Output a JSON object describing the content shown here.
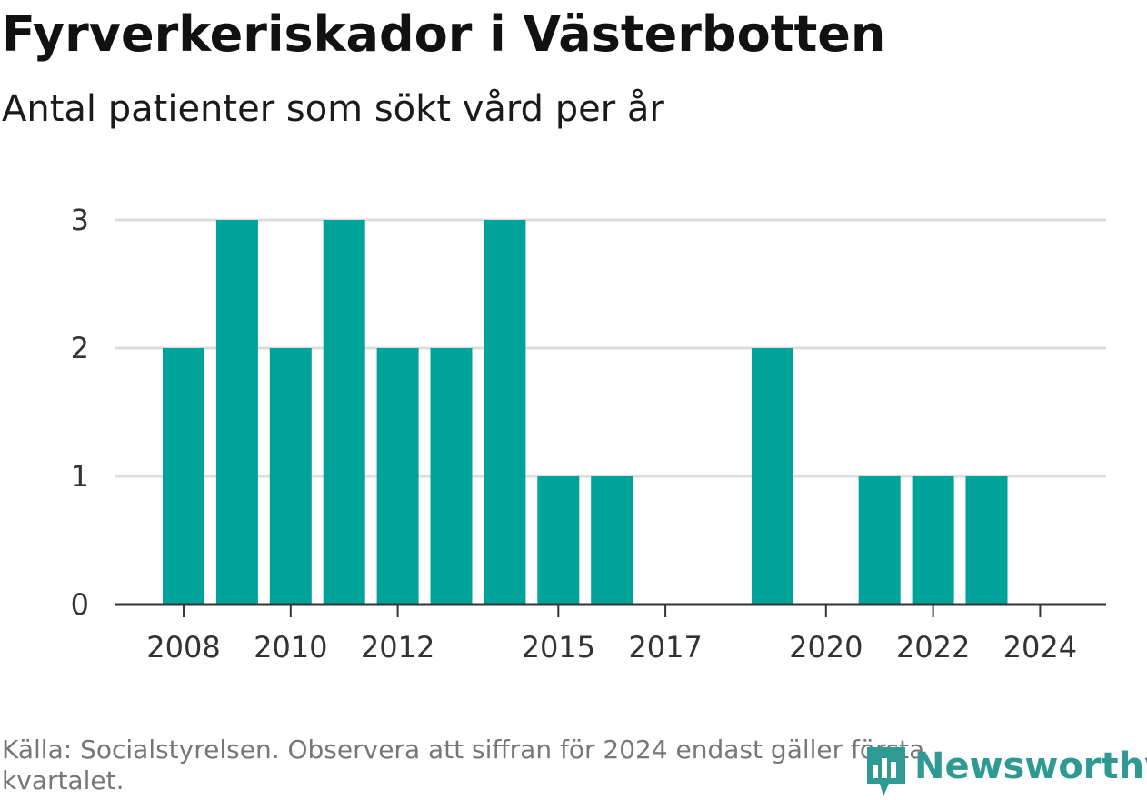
{
  "header": {
    "title": "Fyrverkeriskador i Västerbotten",
    "subtitle": "Antal patienter som sökt vård per år"
  },
  "footer": {
    "source": "Källa: Socialstyrelsen. Observera att siffran för 2024 endast gäller första kvartalet.",
    "brand": "Newsworthy"
  },
  "colors": {
    "bar": "#00a39a",
    "grid": "#dddddd",
    "axis": "#333333",
    "brand": "#2e9a92"
  },
  "chart_data": {
    "type": "bar",
    "title": "Fyrverkeriskador i Västerbotten",
    "subtitle": "Antal patienter som sökt vård per år",
    "x": [
      2008,
      2009,
      2010,
      2011,
      2012,
      2013,
      2014,
      2015,
      2016,
      2017,
      2018,
      2019,
      2020,
      2021,
      2022,
      2023,
      2024
    ],
    "values": [
      2,
      3,
      2,
      3,
      2,
      2,
      3,
      1,
      1,
      0,
      0,
      2,
      0,
      1,
      1,
      1,
      0
    ],
    "xticks": [
      "2008",
      "2010",
      "2012",
      "2015",
      "2017",
      "2020",
      "2022",
      "2024"
    ],
    "yticks": [
      "0",
      "1",
      "2",
      "3"
    ],
    "ylim": [
      0,
      3
    ],
    "xlabel": "",
    "ylabel": "",
    "grid": "horizontal"
  }
}
